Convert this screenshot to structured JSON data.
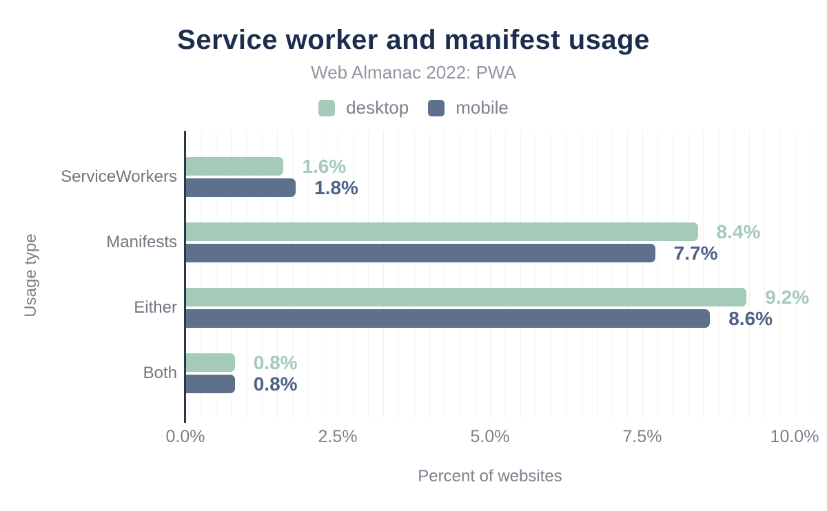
{
  "title": "Service worker and manifest usage",
  "subtitle": "Web Almanac 2022: PWA",
  "legend": {
    "items": [
      {
        "label": "desktop",
        "color": "#a4cab8"
      },
      {
        "label": "mobile",
        "color": "#5e708b"
      }
    ]
  },
  "colors": {
    "title_text": "#1c2d4e",
    "subtitle_text": "#9097a1",
    "axis_text": "#7a818c",
    "axis_line": "#2c3747",
    "gridline": "#eff1f3",
    "desktop": "#a4cab8",
    "mobile": "#5e708b",
    "desktop_value_label": "#a4cab8",
    "mobile_value_label": "#4f6285"
  },
  "chart_data": {
    "type": "bar",
    "orientation": "horizontal",
    "title": "Service worker and manifest usage",
    "subtitle": "Web Almanac 2022: PWA",
    "categories": [
      "ServiceWorkers",
      "Manifests",
      "Either",
      "Both"
    ],
    "series": [
      {
        "name": "desktop",
        "color": "#a4cab8",
        "label_color": "#a4cab8",
        "values": [
          1.6,
          8.4,
          9.2,
          0.8
        ],
        "labels": [
          "1.6%",
          "8.4%",
          "9.2%",
          "0.8%"
        ]
      },
      {
        "name": "mobile",
        "color": "#5e708b",
        "label_color": "#4f6285",
        "values": [
          1.8,
          7.7,
          8.6,
          0.8
        ],
        "labels": [
          "1.8%",
          "7.7%",
          "8.6%",
          "0.8%"
        ]
      }
    ],
    "xlabel": "Percent of websites",
    "ylabel": "Usage type",
    "xlim": [
      0,
      10
    ],
    "x_ticks": [
      {
        "value": 0,
        "label": "0.0%"
      },
      {
        "value": 2.5,
        "label": "2.5%"
      },
      {
        "value": 5,
        "label": "5.0%"
      },
      {
        "value": 7.5,
        "label": "7.5%"
      },
      {
        "value": 10,
        "label": "10.0%"
      }
    ],
    "minor_grid_step_pct": 0.25,
    "grid": true,
    "legend_position": "top",
    "value_labels_shown": true
  }
}
